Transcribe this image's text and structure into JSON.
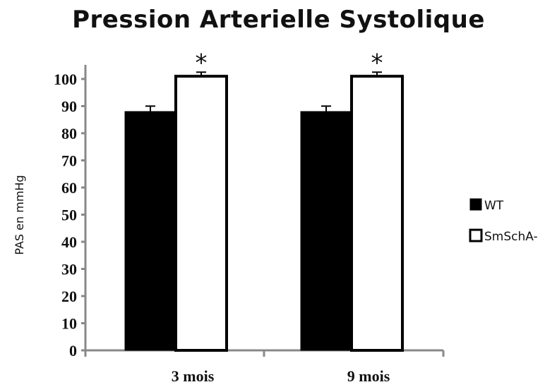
{
  "chart_data": {
    "type": "bar",
    "title": "Pression Arterielle Systolique",
    "ylabel": "PAS en mmHg",
    "xlabel": "",
    "categories": [
      "3 mois",
      "9 mois"
    ],
    "series": [
      {
        "name": "WT",
        "values": [
          88,
          88
        ],
        "errors": [
          2,
          2
        ],
        "color": "#000000"
      },
      {
        "name": "SmSchA-",
        "values": [
          101,
          101
        ],
        "errors": [
          1.5,
          1.5
        ],
        "color": "#ffffff"
      }
    ],
    "ylim": [
      0,
      100
    ],
    "yticks": [
      0,
      10,
      20,
      30,
      40,
      50,
      60,
      70,
      80,
      90,
      100
    ],
    "annotations": [
      "*",
      "*"
    ],
    "grid": false,
    "legend_position": "right"
  }
}
